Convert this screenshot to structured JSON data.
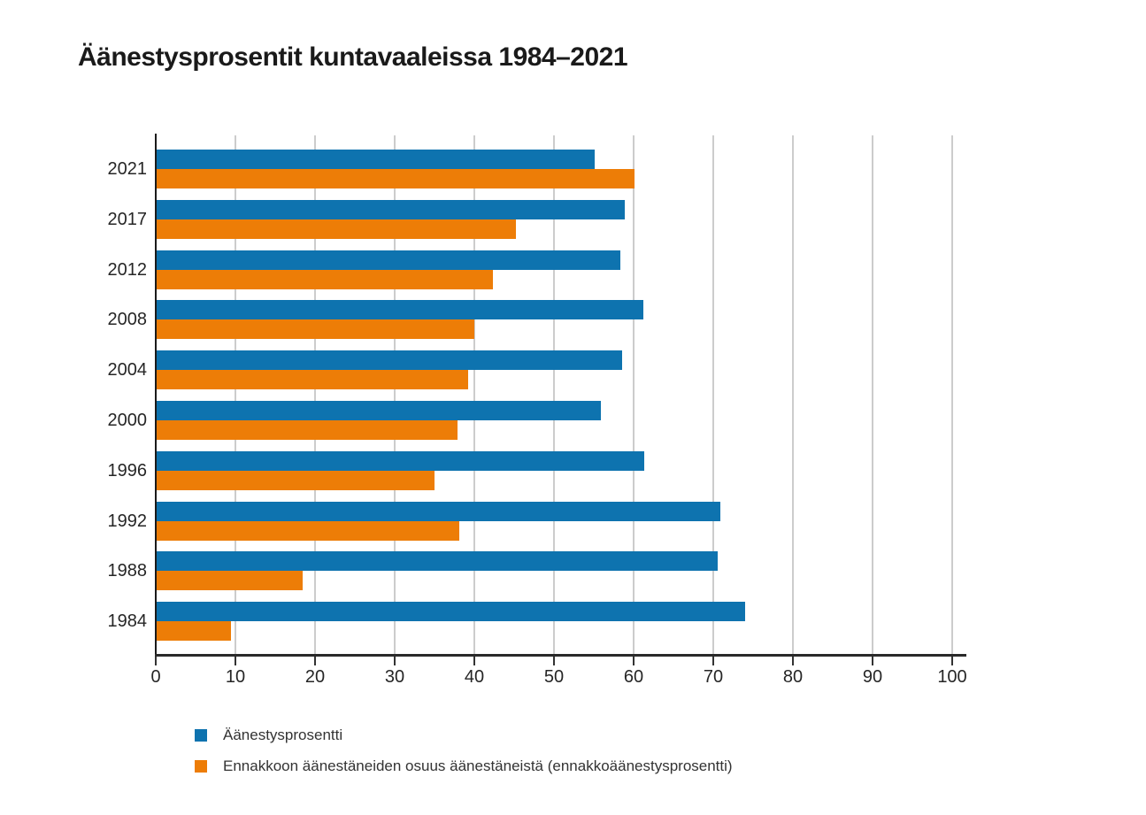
{
  "title": "Äänestysprosentit kuntavaaleissa 1984–2021",
  "colors": {
    "bar_blue": "#0e73af",
    "bar_orange": "#ed7d07",
    "gridline": "#cccccc",
    "axis": "#2a2a2a",
    "text": "#333333"
  },
  "chart_data": {
    "type": "bar",
    "orientation": "horizontal",
    "title": "Äänestysprosentit kuntavaaleissa 1984–2021",
    "categories": [
      "2021",
      "2017",
      "2012",
      "2008",
      "2004",
      "2000",
      "1996",
      "1992",
      "1988",
      "1984"
    ],
    "series": [
      {
        "name": "Äänestysprosentti",
        "color": "#0e73af",
        "values": [
          55.1,
          58.9,
          58.3,
          61.2,
          58.6,
          55.9,
          61.3,
          70.9,
          70.5,
          74.0
        ]
      },
      {
        "name": "Ennakkoon äänestäneiden osuus äänestäneistä (ennakkoäänestysprosentti)",
        "color": "#ed7d07",
        "values": [
          60.1,
          45.2,
          42.3,
          40.0,
          39.2,
          37.9,
          35.0,
          38.1,
          18.4,
          9.4
        ]
      }
    ],
    "xlim": [
      0,
      100
    ],
    "xticks": [
      0,
      10,
      20,
      30,
      40,
      50,
      60,
      70,
      80,
      90,
      100
    ],
    "grid": "vertical",
    "legend_position": "bottom-left"
  }
}
